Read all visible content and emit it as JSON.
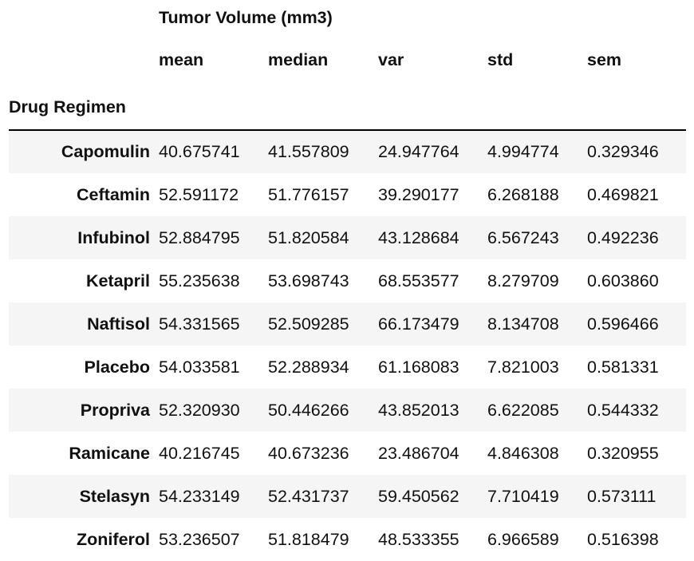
{
  "table": {
    "column_group": "Tumor Volume (mm3)",
    "columns": [
      "mean",
      "median",
      "var",
      "std",
      "sem"
    ],
    "index_name": "Drug Regimen",
    "rows": [
      {
        "label": "Capomulin",
        "values": [
          "40.675741",
          "41.557809",
          "24.947764",
          "4.994774",
          "0.329346"
        ]
      },
      {
        "label": "Ceftamin",
        "values": [
          "52.591172",
          "51.776157",
          "39.290177",
          "6.268188",
          "0.469821"
        ]
      },
      {
        "label": "Infubinol",
        "values": [
          "52.884795",
          "51.820584",
          "43.128684",
          "6.567243",
          "0.492236"
        ]
      },
      {
        "label": "Ketapril",
        "values": [
          "55.235638",
          "53.698743",
          "68.553577",
          "8.279709",
          "0.603860"
        ]
      },
      {
        "label": "Naftisol",
        "values": [
          "54.331565",
          "52.509285",
          "66.173479",
          "8.134708",
          "0.596466"
        ]
      },
      {
        "label": "Placebo",
        "values": [
          "54.033581",
          "52.288934",
          "61.168083",
          "7.821003",
          "0.581331"
        ]
      },
      {
        "label": "Propriva",
        "values": [
          "52.320930",
          "50.446266",
          "43.852013",
          "6.622085",
          "0.544332"
        ]
      },
      {
        "label": "Ramicane",
        "values": [
          "40.216745",
          "40.673236",
          "23.486704",
          "4.846308",
          "0.320955"
        ]
      },
      {
        "label": "Stelasyn",
        "values": [
          "54.233149",
          "52.431737",
          "59.450562",
          "7.710419",
          "0.573111"
        ]
      },
      {
        "label": "Zoniferol",
        "values": [
          "53.236507",
          "51.818479",
          "48.533355",
          "6.966589",
          "0.516398"
        ]
      }
    ]
  }
}
